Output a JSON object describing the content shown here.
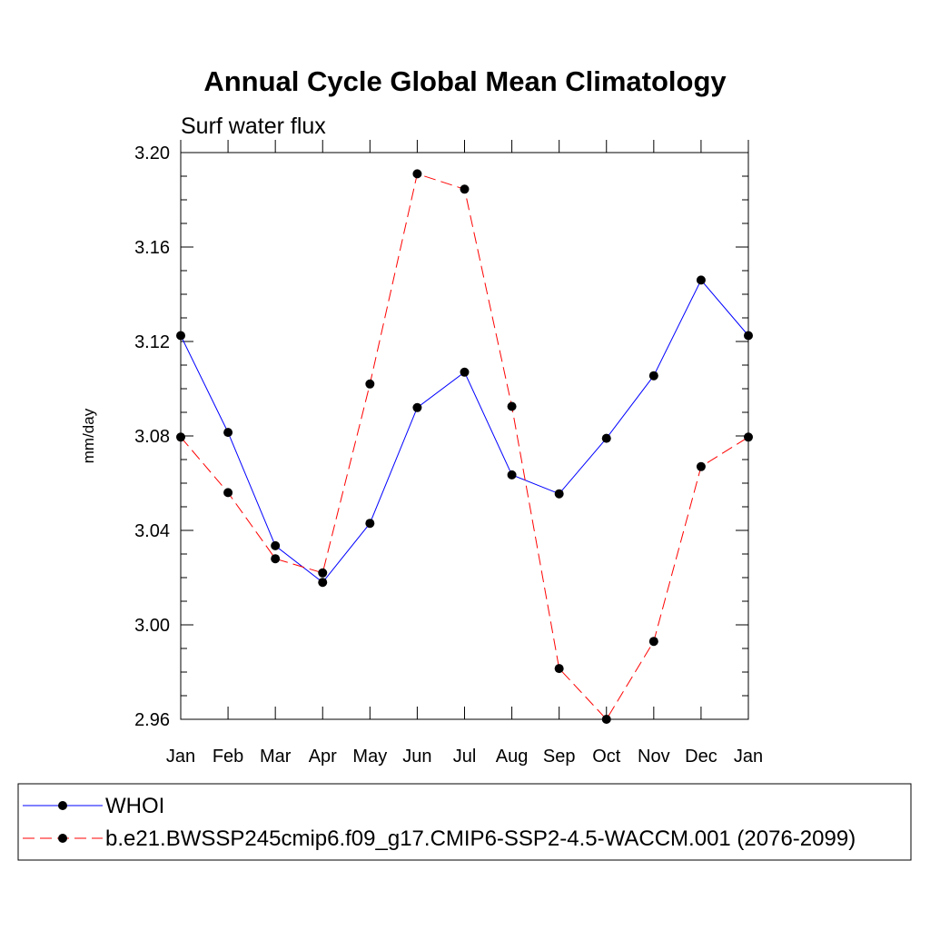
{
  "chart_data": {
    "type": "line",
    "title": "Annual Cycle Global Mean Climatology",
    "subtitle": "Surf water flux",
    "xlabel": "",
    "ylabel": "mm/day",
    "ylim": [
      2.96,
      3.2
    ],
    "yticks": [
      "3.20",
      "3.16",
      "3.12",
      "3.08",
      "3.04",
      "3.00",
      "2.96"
    ],
    "categories": [
      "Jan",
      "Feb",
      "Mar",
      "Apr",
      "May",
      "Jun",
      "Jul",
      "Aug",
      "Sep",
      "Oct",
      "Nov",
      "Dec",
      "Jan"
    ],
    "series": [
      {
        "name": "WHOI",
        "color": "#0000ff",
        "style": "solid",
        "values": [
          3.1225,
          3.0815,
          3.0335,
          3.018,
          3.043,
          3.092,
          3.107,
          3.0635,
          3.0555,
          3.079,
          3.1055,
          3.146,
          3.1225
        ]
      },
      {
        "name": "b.e21.BWSSP245cmip6.f09_g17.CMIP6-SSP2-4.5-WACCM.001 (2076-2099)",
        "color": "#ff0000",
        "style": "dashed",
        "values": [
          3.0795,
          3.056,
          3.028,
          3.022,
          3.102,
          3.191,
          3.1845,
          3.0925,
          2.9815,
          2.96,
          2.993,
          3.067,
          3.0795
        ]
      }
    ],
    "grid": false,
    "legend_position": "bottom"
  }
}
